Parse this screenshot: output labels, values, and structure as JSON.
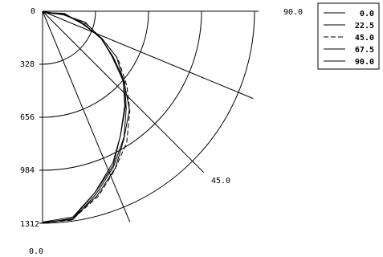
{
  "chart_data": {
    "type": "line",
    "coordinate_system": "polar-quadrant",
    "radial_axis": {
      "range": [
        0,
        1312
      ],
      "tick_labels": [
        "0",
        "328",
        "656",
        "984",
        "1312"
      ]
    },
    "angle_axis": {
      "range_deg": [
        0,
        90
      ],
      "tick_labels": [
        "0.0",
        "45.0",
        "90.0"
      ]
    },
    "grid": true,
    "legend_position": "top-right",
    "series": [
      {
        "name": "0.0",
        "dash": "solid",
        "r": [
          0,
          130,
          260,
          390,
          520,
          650,
          780,
          910,
          1040,
          1170,
          1290,
          1312
        ]
      },
      {
        "name": "22.5",
        "dash": "solid",
        "r": [
          0,
          130,
          265,
          400,
          530,
          665,
          795,
          925,
          1055,
          1180,
          1295,
          1312
        ]
      },
      {
        "name": "45.0",
        "dash": "dashed",
        "r": [
          0,
          135,
          275,
          415,
          550,
          690,
          825,
          955,
          1080,
          1200,
          1300,
          1312
        ]
      },
      {
        "name": "67.5",
        "dash": "solid",
        "r": [
          0,
          132,
          268,
          405,
          540,
          675,
          810,
          940,
          1065,
          1190,
          1298,
          1312
        ]
      },
      {
        "name": "90.0",
        "dash": "solid",
        "r": [
          0,
          128,
          258,
          388,
          518,
          648,
          775,
          905,
          1035,
          1160,
          1285,
          1312
        ]
      }
    ]
  },
  "legend": {
    "items": [
      "0.0",
      "22.5",
      "45.0",
      "67.5",
      "90.0"
    ]
  }
}
